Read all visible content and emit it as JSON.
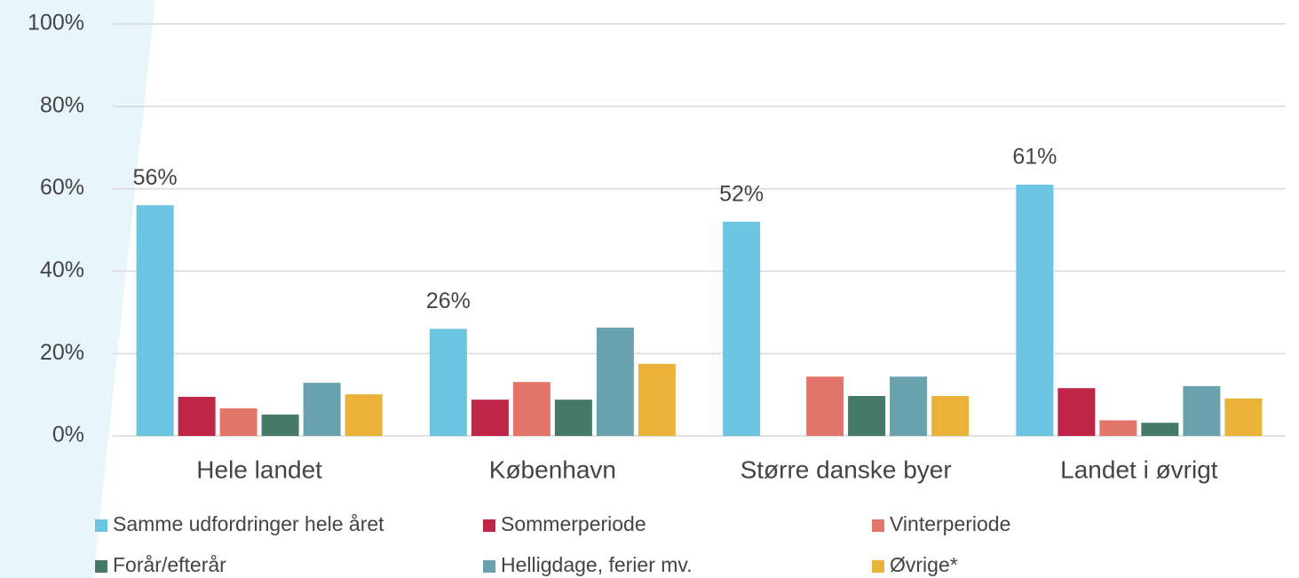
{
  "chart_data": {
    "type": "bar",
    "categories": [
      "Hele landet",
      "København",
      "Større danske byer",
      "Landet i øvrigt"
    ],
    "series": [
      {
        "name": "Samme udfordringer hele året",
        "color": "#6cc5e0",
        "values": [
          56,
          26,
          52,
          61
        ],
        "value_labels": [
          "56%",
          "26%",
          "52%",
          "61%"
        ]
      },
      {
        "name": "Sommerperiode",
        "color": "#c0264a",
        "values": [
          9.5,
          8.8,
          0,
          11.6
        ]
      },
      {
        "name": "Vinterperiode",
        "color": "#e3766a",
        "values": [
          6.7,
          13.1,
          14.4,
          3.8
        ]
      },
      {
        "name": "Forår/efterår",
        "color": "#467a68",
        "values": [
          5.2,
          8.8,
          9.7,
          3.2
        ]
      },
      {
        "name": "Helligdage, ferier mv.",
        "color": "#6aa1af",
        "values": [
          12.9,
          26.3,
          14.4,
          12.1
        ]
      },
      {
        "name": "Øvrige*",
        "color": "#ebb23a",
        "values": [
          10.1,
          17.5,
          9.7,
          9.1
        ]
      }
    ],
    "ylim": [
      0,
      100
    ],
    "yticks": [
      {
        "value": 0,
        "label": "0%"
      },
      {
        "value": 20,
        "label": "20%"
      },
      {
        "value": 40,
        "label": "40%"
      },
      {
        "value": 60,
        "label": "60%"
      },
      {
        "value": 80,
        "label": "80%"
      },
      {
        "value": 100,
        "label": "100%"
      }
    ],
    "grid": true
  }
}
